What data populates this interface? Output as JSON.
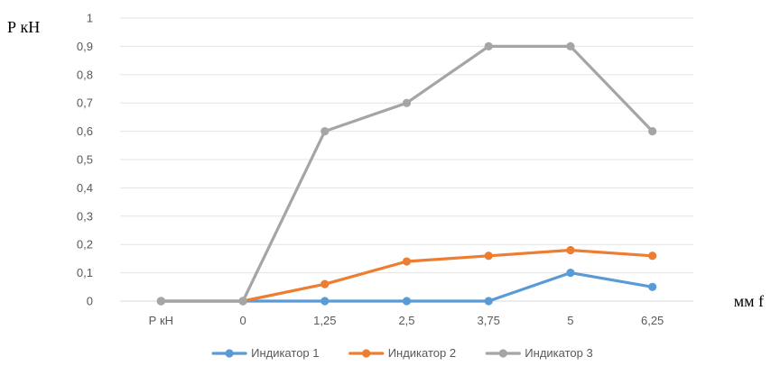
{
  "chart_data": {
    "type": "line",
    "categories": [
      "Р кН",
      "0",
      "1,25",
      "2,5",
      "3,75",
      "5",
      "6,25"
    ],
    "series": [
      {
        "name": "Индикатор 1",
        "color": "#5B9BD5",
        "values": [
          0,
          0,
          0,
          0,
          0,
          0.1,
          0.05
        ]
      },
      {
        "name": "Индикатор 2",
        "color": "#ED7D31",
        "values": [
          0,
          0,
          0.06,
          0.14,
          0.16,
          0.18,
          0.16
        ]
      },
      {
        "name": "Индикатор 3",
        "color": "#A5A5A5",
        "values": [
          0,
          0,
          0.6,
          0.7,
          0.9,
          0.9,
          0.6
        ]
      }
    ],
    "yticks": [
      "0",
      "0,1",
      "0,2",
      "0,3",
      "0,4",
      "0,5",
      "0,6",
      "0,7",
      "0,8",
      "0,9",
      "1"
    ],
    "ylim": [
      0,
      1
    ],
    "ylabel": "Р кН",
    "xlabel": "мм f",
    "grid": true,
    "legend_position": "bottom"
  }
}
